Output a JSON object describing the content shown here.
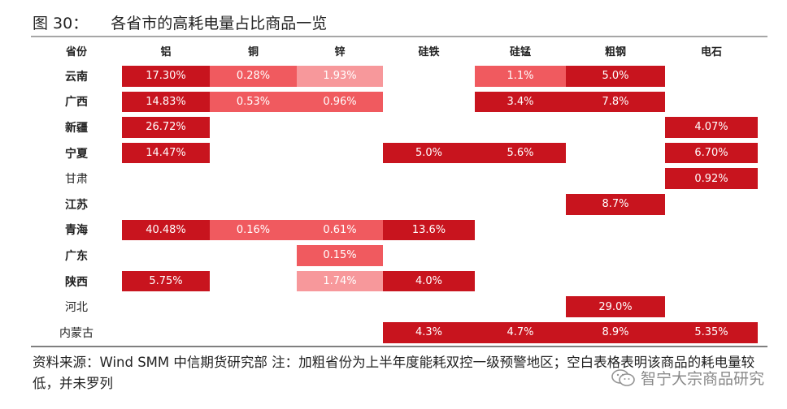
{
  "figure": {
    "label": "图 30：",
    "title": "各省市的高耗电量占比商品一览"
  },
  "table": {
    "headers": [
      "省份",
      "铝",
      "铜",
      "锌",
      "硅铁",
      "硅锰",
      "粗钢",
      "电石"
    ],
    "rows": [
      {
        "province": "云南",
        "bold": true,
        "cells": [
          {
            "value": "17.30%",
            "level": "dark"
          },
          {
            "value": "0.28%",
            "level": "mid"
          },
          {
            "value": "1.93%",
            "level": "light"
          },
          {
            "value": "",
            "level": "none"
          },
          {
            "value": "1.1%",
            "level": "mid"
          },
          {
            "value": "5.0%",
            "level": "dark"
          },
          {
            "value": "",
            "level": "none"
          }
        ]
      },
      {
        "province": "广西",
        "bold": true,
        "cells": [
          {
            "value": "14.83%",
            "level": "dark"
          },
          {
            "value": "0.53%",
            "level": "mid"
          },
          {
            "value": "0.96%",
            "level": "mid"
          },
          {
            "value": "",
            "level": "none"
          },
          {
            "value": "3.4%",
            "level": "dark"
          },
          {
            "value": "7.8%",
            "level": "dark"
          },
          {
            "value": "",
            "level": "none"
          }
        ]
      },
      {
        "province": "新疆",
        "bold": true,
        "cells": [
          {
            "value": "26.72%",
            "level": "dark"
          },
          {
            "value": "",
            "level": "none"
          },
          {
            "value": "",
            "level": "none"
          },
          {
            "value": "",
            "level": "none"
          },
          {
            "value": "",
            "level": "none"
          },
          {
            "value": "",
            "level": "none"
          },
          {
            "value": "4.07%",
            "level": "dark"
          }
        ]
      },
      {
        "province": "宁夏",
        "bold": true,
        "cells": [
          {
            "value": "14.47%",
            "level": "dark"
          },
          {
            "value": "",
            "level": "none"
          },
          {
            "value": "",
            "level": "none"
          },
          {
            "value": "5.0%",
            "level": "dark"
          },
          {
            "value": "5.6%",
            "level": "dark"
          },
          {
            "value": "",
            "level": "none"
          },
          {
            "value": "6.70%",
            "level": "dark"
          }
        ]
      },
      {
        "province": "甘肃",
        "bold": false,
        "cells": [
          {
            "value": "",
            "level": "none"
          },
          {
            "value": "",
            "level": "none"
          },
          {
            "value": "",
            "level": "none"
          },
          {
            "value": "",
            "level": "none"
          },
          {
            "value": "",
            "level": "none"
          },
          {
            "value": "",
            "level": "none"
          },
          {
            "value": "0.92%",
            "level": "dark"
          }
        ]
      },
      {
        "province": "江苏",
        "bold": true,
        "cells": [
          {
            "value": "",
            "level": "none"
          },
          {
            "value": "",
            "level": "none"
          },
          {
            "value": "",
            "level": "none"
          },
          {
            "value": "",
            "level": "none"
          },
          {
            "value": "",
            "level": "none"
          },
          {
            "value": "8.7%",
            "level": "dark"
          },
          {
            "value": "",
            "level": "none"
          }
        ]
      },
      {
        "province": "青海",
        "bold": true,
        "cells": [
          {
            "value": "40.48%",
            "level": "dark"
          },
          {
            "value": "0.16%",
            "level": "mid"
          },
          {
            "value": "0.61%",
            "level": "mid"
          },
          {
            "value": "13.6%",
            "level": "dark"
          },
          {
            "value": "",
            "level": "none"
          },
          {
            "value": "",
            "level": "none"
          },
          {
            "value": "",
            "level": "none"
          }
        ]
      },
      {
        "province": "广东",
        "bold": true,
        "cells": [
          {
            "value": "",
            "level": "none"
          },
          {
            "value": "",
            "level": "none"
          },
          {
            "value": "0.15%",
            "level": "mid"
          },
          {
            "value": "",
            "level": "none"
          },
          {
            "value": "",
            "level": "none"
          },
          {
            "value": "",
            "level": "none"
          },
          {
            "value": "",
            "level": "none"
          }
        ]
      },
      {
        "province": "陕西",
        "bold": true,
        "cells": [
          {
            "value": "5.75%",
            "level": "dark"
          },
          {
            "value": "",
            "level": "none"
          },
          {
            "value": "1.74%",
            "level": "light"
          },
          {
            "value": "4.0%",
            "level": "dark"
          },
          {
            "value": "",
            "level": "none"
          },
          {
            "value": "",
            "level": "none"
          },
          {
            "value": "",
            "level": "none"
          }
        ]
      },
      {
        "province": "河北",
        "bold": false,
        "cells": [
          {
            "value": "",
            "level": "none"
          },
          {
            "value": "",
            "level": "none"
          },
          {
            "value": "",
            "level": "none"
          },
          {
            "value": "",
            "level": "none"
          },
          {
            "value": "",
            "level": "none"
          },
          {
            "value": "29.0%",
            "level": "dark"
          },
          {
            "value": "",
            "level": "none"
          }
        ]
      },
      {
        "province": "内蒙古",
        "bold": false,
        "cells": [
          {
            "value": "",
            "level": "none"
          },
          {
            "value": "",
            "level": "none"
          },
          {
            "value": "",
            "level": "none"
          },
          {
            "value": "4.3%",
            "level": "dark"
          },
          {
            "value": "4.7%",
            "level": "dark"
          },
          {
            "value": "8.9%",
            "level": "dark"
          },
          {
            "value": "5.35%",
            "level": "dark"
          }
        ]
      }
    ]
  },
  "colors": {
    "dark": "#c8141e",
    "mid": "#f05a5f",
    "light": "#f7989b"
  },
  "source_note": "资料来源：Wind SMM 中信期货研究部 注：加粗省份为上半年度能耗双控一级预警地区；空白表格表明该商品的耗电量较低，并未罗列",
  "watermark": {
    "text": "智宁大宗商品研究",
    "icon": "wechat-icon"
  }
}
